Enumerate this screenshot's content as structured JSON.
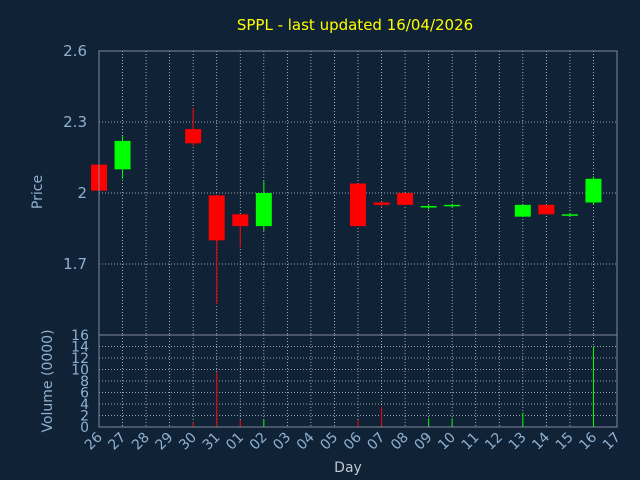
{
  "chart_data": {
    "type": "candlestick",
    "title": "SPPL - last updated 16/04/2026",
    "xlabel": "Day",
    "price_panel": {
      "ylabel": "Price",
      "ylim": [
        1.4,
        2.6
      ],
      "yticks": [
        "1.7",
        "2",
        "2.3",
        "2.6"
      ],
      "ytick_values": [
        1.7,
        2.0,
        2.3,
        2.6
      ]
    },
    "volume_panel": {
      "ylabel": "Volume (0000)",
      "ylim": [
        0,
        16
      ],
      "yticks": [
        0,
        2,
        4,
        6,
        8,
        10,
        12,
        14,
        16
      ]
    },
    "categories": [
      "26",
      "27",
      "28",
      "29",
      "30",
      "31",
      "01",
      "02",
      "03",
      "04",
      "05",
      "06",
      "07",
      "08",
      "09",
      "10",
      "11",
      "12",
      "13",
      "14",
      "15",
      "16",
      "17"
    ],
    "candles": [
      {
        "day": "26",
        "open": 2.12,
        "high": 2.12,
        "low": 2.01,
        "close": 2.01,
        "volume": 0
      },
      {
        "day": "27",
        "open": 2.1,
        "high": 2.24,
        "low": 2.06,
        "close": 2.22,
        "volume": 0
      },
      {
        "day": "30",
        "open": 2.27,
        "high": 2.36,
        "low": 2.2,
        "close": 2.21,
        "volume": 0.8
      },
      {
        "day": "31",
        "open": 1.99,
        "high": 1.99,
        "low": 1.53,
        "close": 1.8,
        "volume": 9.5
      },
      {
        "day": "01",
        "open": 1.91,
        "high": 1.91,
        "low": 1.77,
        "close": 1.86,
        "volume": 1.2
      },
      {
        "day": "02",
        "open": 1.86,
        "high": 2.05,
        "low": 1.84,
        "close": 2.0,
        "volume": 1.2
      },
      {
        "day": "06",
        "open": 2.04,
        "high": 2.04,
        "low": 1.86,
        "close": 1.86,
        "volume": 1.2
      },
      {
        "day": "07",
        "open": 1.96,
        "high": 1.96,
        "low": 1.94,
        "close": 1.95,
        "volume": 3.5
      },
      {
        "day": "08",
        "open": 2.0,
        "high": 2.0,
        "low": 1.95,
        "close": 1.95,
        "volume": 0
      },
      {
        "day": "09",
        "open": 1.94,
        "high": 1.95,
        "low": 1.93,
        "close": 1.945,
        "volume": 1.5
      },
      {
        "day": "10",
        "open": 1.945,
        "high": 1.955,
        "low": 1.94,
        "close": 1.95,
        "volume": 1.5
      },
      {
        "day": "13",
        "open": 1.9,
        "high": 1.95,
        "low": 1.9,
        "close": 1.95,
        "volume": 2.5
      },
      {
        "day": "14",
        "open": 1.95,
        "high": 1.95,
        "low": 1.91,
        "close": 1.91,
        "volume": 0
      },
      {
        "day": "15",
        "open": 1.905,
        "high": 1.915,
        "low": 1.9,
        "close": 1.91,
        "volume": 0
      },
      {
        "day": "16",
        "open": 1.96,
        "high": 2.07,
        "low": 1.95,
        "close": 2.06,
        "volume": 14
      }
    ],
    "grid": true,
    "colors": {
      "background": "#102236",
      "axis": "#7f8b99",
      "grid": "#c8ccd2",
      "text": "#8fb1cf",
      "title": "#ffff00",
      "up": "#00ff00",
      "down": "#ff0000"
    }
  }
}
